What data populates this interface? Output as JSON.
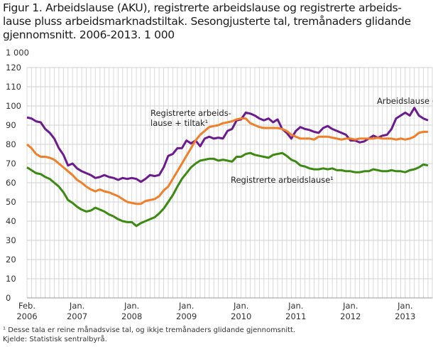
{
  "title_lines": [
    "Figur 1. Arbeidslause (AKU), registrerte arbeidslause og registrerte arbeids-",
    "lause pluss arbeidsmarknadstiltak. Sesongjusterte tal, tremånaders glidande",
    "gjennomsnitt. 2006-2013. 1 000"
  ],
  "footnote": "¹ Desse tala er reine månadsvise tal, og ikkje tremånaders glidande gjennomsnitt.",
  "source": "Kjelde: Statistisk sentralbyrå.",
  "chart_data": {
    "type": "line",
    "title": "Figur 1. Arbeidslause (AKU), registrerte arbeidslause og registrerte arbeidslause pluss arbeidsmarknadstiltak. Sesongjusterte tal, tremånaders glidande gjennomsnitt. 2006-2013. 1 000",
    "ylabel": "1 000",
    "ylim": [
      0,
      120
    ],
    "yticks": [
      0,
      10,
      20,
      30,
      40,
      50,
      60,
      70,
      80,
      90,
      100,
      110,
      120
    ],
    "x_start": "2006-02",
    "x_end": "2013-06",
    "x_frequency": "monthly",
    "xticks": [
      {
        "month": "2006-02",
        "label1": "Feb.",
        "label2": "2006"
      },
      {
        "month": "2007-01",
        "label1": "Jan.",
        "label2": "2007"
      },
      {
        "month": "2008-01",
        "label1": "Jan.",
        "label2": "2008"
      },
      {
        "month": "2009-01",
        "label1": "Jan.",
        "label2": "2009"
      },
      {
        "month": "2010-01",
        "label1": "Jan.",
        "label2": "2010"
      },
      {
        "month": "2011-01",
        "label1": "Jan.",
        "label2": "2011"
      },
      {
        "month": "2012-01",
        "label1": "Jan.",
        "label2": "2012"
      },
      {
        "month": "2013-01",
        "label1": "Jan.",
        "label2": "2013"
      }
    ],
    "grid": true,
    "series": [
      {
        "name": "Arbeidslause (AKU)",
        "color": "#6b1b8e",
        "label_lines": [
          "Arbeidslause (AKU)"
        ],
        "values": [
          94,
          93.5,
          92,
          91.5,
          88,
          86,
          83,
          78,
          74.5,
          69,
          70,
          67.5,
          66,
          65,
          64,
          62.5,
          63,
          64,
          63,
          62.5,
          61.5,
          62.5,
          62,
          62.5,
          62,
          60.5,
          62,
          64,
          63.5,
          64,
          68,
          74,
          75,
          78,
          78,
          82,
          80.5,
          82,
          79,
          83,
          84,
          83,
          83.5,
          83,
          87,
          88,
          92.5,
          93,
          96.5,
          96,
          95,
          93.5,
          92.5,
          93.5,
          91.5,
          93,
          88,
          86,
          83,
          87,
          89,
          88,
          87.5,
          86.5,
          86,
          88.5,
          89.5,
          88,
          87,
          86,
          85,
          82,
          82,
          81,
          81.5,
          83,
          84.5,
          83.5,
          84.5,
          85,
          88,
          93.5,
          95,
          96.5,
          95,
          99,
          95,
          93.5,
          92.5
        ]
      },
      {
        "name": "Registrerte arbeidslause + tiltak¹",
        "color": "#f07f2a",
        "label_lines": [
          "Registrerte arbeids-",
          "lause + tiltak¹"
        ],
        "values": [
          80,
          78,
          75,
          73.5,
          73.5,
          73,
          72,
          70,
          68,
          66,
          64,
          61.5,
          60,
          58,
          56.5,
          55.5,
          56.5,
          55.5,
          55,
          54,
          53,
          51.5,
          50,
          49.5,
          49,
          49,
          50.5,
          51,
          51.5,
          53,
          56,
          58,
          62,
          66,
          70,
          74,
          78,
          82,
          85,
          87,
          89,
          89.5,
          90,
          91,
          91.5,
          92,
          93,
          93.5,
          93.5,
          91,
          90,
          89,
          88.5,
          88.5,
          88.5,
          88.5,
          88,
          87,
          85,
          84,
          83,
          83,
          83,
          82.5,
          84,
          84,
          84,
          83.5,
          83,
          82.5,
          83,
          83,
          82.5,
          83,
          83,
          83,
          83,
          83.5,
          83,
          83,
          83,
          82.5,
          83,
          82.5,
          83,
          84,
          86,
          86.5,
          86.5
        ]
      },
      {
        "name": "Registrerte arbeidslause¹",
        "color": "#3c8a12",
        "label_lines": [
          "Registrerte arbeidslause¹"
        ],
        "values": [
          68,
          66.5,
          65,
          64.5,
          63,
          62,
          60,
          58,
          55,
          51,
          49.5,
          47.5,
          46,
          45,
          45.5,
          47,
          46,
          45,
          43.5,
          42.5,
          41,
          40,
          39.5,
          39.5,
          37.5,
          39,
          40,
          41,
          42,
          44,
          46.5,
          50,
          53.5,
          58,
          62,
          65,
          68,
          70,
          71.5,
          72,
          72.5,
          72.5,
          71.5,
          72,
          71.5,
          71,
          73.5,
          73.5,
          75,
          75.5,
          74.5,
          74,
          73.5,
          73,
          74.5,
          75,
          75.5,
          74,
          72,
          71,
          69,
          68.5,
          67.5,
          67,
          67,
          67.5,
          67,
          67.5,
          66.5,
          66.5,
          66,
          66,
          65.5,
          65.5,
          66,
          66,
          67,
          66.5,
          66,
          66,
          66.5,
          66,
          66,
          65.5,
          66.5,
          67,
          68,
          69.5,
          69
        ]
      }
    ]
  }
}
